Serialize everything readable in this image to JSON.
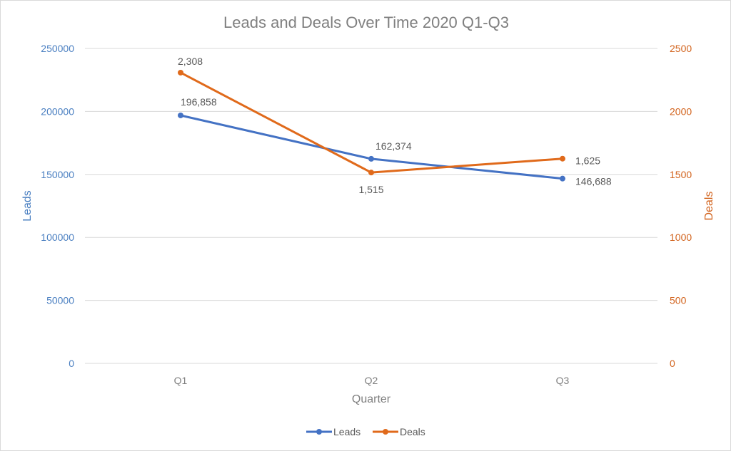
{
  "colors": {
    "leads": "#4472c4",
    "deals": "#e06a1b",
    "grid": "#d9d9d9",
    "text": "#7f7f7f"
  },
  "chart_data": {
    "type": "line",
    "title": "Leads and Deals Over Time 2020 Q1-Q3",
    "xlabel": "Quarter",
    "ylabel_left": "Leads",
    "ylabel_right": "Deals",
    "categories": [
      "Q1",
      "Q2",
      "Q3"
    ],
    "ylim_left": [
      0,
      250000
    ],
    "ylim_right": [
      0,
      2500
    ],
    "yticks_left": [
      "0",
      "50000",
      "100000",
      "150000",
      "200000",
      "250000"
    ],
    "yticks_right": [
      "0",
      "500",
      "1000",
      "1500",
      "2000",
      "2500"
    ],
    "grid": true,
    "legend_position": "bottom",
    "series": [
      {
        "name": "Leads",
        "axis": "left",
        "values": [
          196858,
          162374,
          146688
        ],
        "labels": [
          "196,858",
          "162,374",
          "146,688"
        ]
      },
      {
        "name": "Deals",
        "axis": "right",
        "values": [
          2308,
          1515,
          1625
        ],
        "labels": [
          "2,308",
          "1,515",
          "1,625"
        ]
      }
    ]
  }
}
